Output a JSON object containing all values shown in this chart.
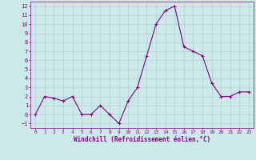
{
  "x": [
    0,
    1,
    2,
    3,
    4,
    5,
    6,
    7,
    8,
    9,
    10,
    11,
    12,
    13,
    14,
    15,
    16,
    17,
    18,
    19,
    20,
    21,
    22,
    23
  ],
  "y": [
    0,
    2,
    1.8,
    1.5,
    2,
    0,
    0,
    1,
    0,
    -1,
    1.5,
    3,
    6.5,
    10,
    11.5,
    12,
    7.5,
    7,
    6.5,
    3.5,
    2,
    2,
    2.5,
    2.5
  ],
  "xlabel": "Windchill (Refroidissement éolien,°C)",
  "xlim": [
    -0.5,
    23.5
  ],
  "ylim": [
    -1.5,
    12.5
  ],
  "yticks": [
    -1,
    0,
    1,
    2,
    3,
    4,
    5,
    6,
    7,
    8,
    9,
    10,
    11,
    12
  ],
  "xticks": [
    0,
    1,
    2,
    3,
    4,
    5,
    6,
    7,
    8,
    9,
    10,
    11,
    12,
    13,
    14,
    15,
    16,
    17,
    18,
    19,
    20,
    21,
    22,
    23
  ],
  "line_color": "#800080",
  "marker": "+",
  "bg_color": "#cce8e8",
  "grid_color": "#b0d0d0",
  "tick_color": "#800080",
  "label_color": "#800080",
  "font_family": "monospace"
}
